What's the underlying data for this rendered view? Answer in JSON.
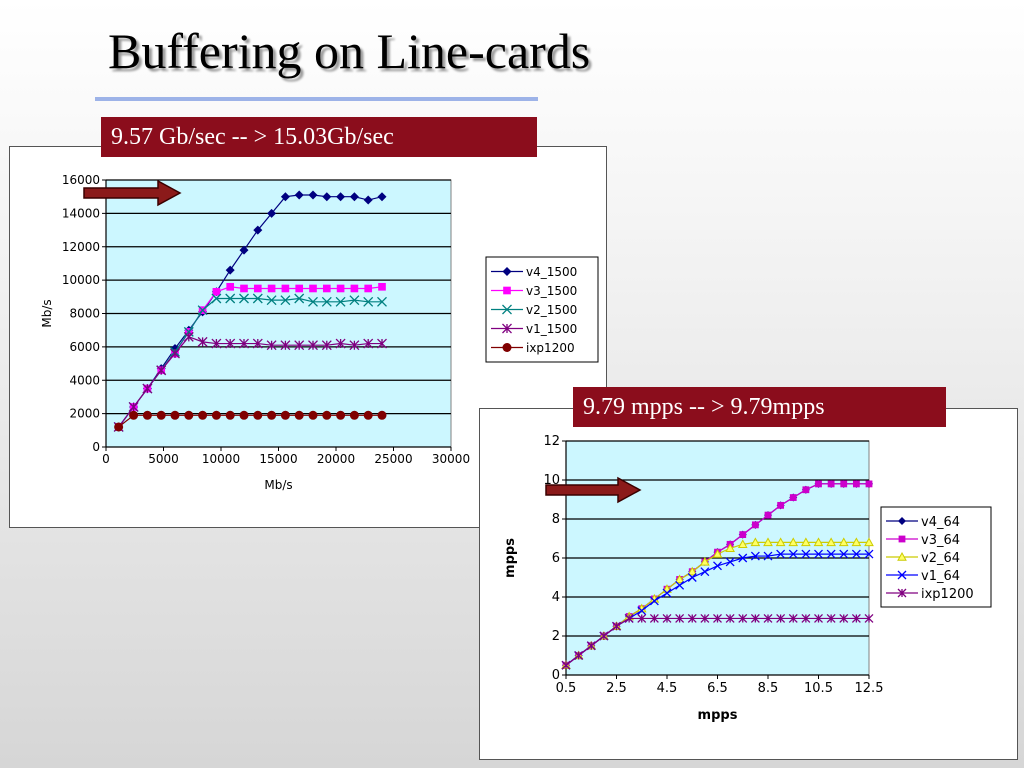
{
  "slide": {
    "title": "Buffering on Line-cards",
    "callout_1": "9.57 Gb/sec -- > 15.03Gb/sec",
    "callout_2": "9.79 mpps -- > 9.79mpps"
  },
  "colors": {
    "plot_bg": "#ccf7ff",
    "callout_bg": "#8b0d1c",
    "title_rule": "#9db3e8",
    "arrow": "#8b1a1a"
  },
  "chart_data": [
    {
      "type": "line",
      "xlabel": "Mb/s",
      "ylabel": "Mb/s",
      "xlim": [
        0,
        30000
      ],
      "ylim": [
        0,
        16000
      ],
      "x_ticks": [
        "0",
        "5000",
        "10000",
        "15000",
        "20000",
        "25000",
        "30000"
      ],
      "y_ticks": [
        "0",
        "2000",
        "4000",
        "6000",
        "8000",
        "10000",
        "12000",
        "14000",
        "16000"
      ],
      "grid": "horizontal",
      "legend": "right",
      "series": [
        {
          "name": "v4_1500",
          "marker": "diamond",
          "color": "#000080",
          "x": [
            1100,
            2400,
            3600,
            4800,
            6000,
            7200,
            8400,
            9600,
            10800,
            12000,
            13200,
            14400,
            15600,
            16800,
            18000,
            19200,
            20400,
            21600,
            22800,
            24000
          ],
          "y": [
            1200,
            2400,
            3500,
            4700,
            5900,
            7000,
            8100,
            9300,
            10600,
            11800,
            13000,
            14000,
            15000,
            15100,
            15100,
            15000,
            15000,
            15000,
            14800,
            15000
          ]
        },
        {
          "name": "v3_1500",
          "marker": "square",
          "color": "#ff00ff",
          "x": [
            1100,
            2400,
            3600,
            4800,
            6000,
            7200,
            8400,
            9600,
            10800,
            12000,
            13200,
            14400,
            15600,
            16800,
            18000,
            19200,
            20400,
            21600,
            22800,
            24000
          ],
          "y": [
            1200,
            2400,
            3500,
            4600,
            5600,
            6900,
            8200,
            9300,
            9600,
            9500,
            9500,
            9500,
            9500,
            9500,
            9500,
            9500,
            9500,
            9500,
            9500,
            9600
          ]
        },
        {
          "name": "v2_1500",
          "marker": "x",
          "color": "#008080",
          "x": [
            1100,
            2400,
            3600,
            4800,
            6000,
            7200,
            8400,
            9600,
            10800,
            12000,
            13200,
            14400,
            15600,
            16800,
            18000,
            19200,
            20400,
            21600,
            22800,
            24000
          ],
          "y": [
            1200,
            2400,
            3500,
            4600,
            5700,
            6900,
            8200,
            8900,
            8900,
            8900,
            8900,
            8800,
            8800,
            8900,
            8700,
            8700,
            8700,
            8800,
            8700,
            8700
          ]
        },
        {
          "name": "v1_1500",
          "marker": "asterisk",
          "color": "#800080",
          "x": [
            1100,
            2400,
            3600,
            4800,
            6000,
            7200,
            8400,
            9600,
            10800,
            12000,
            13200,
            14400,
            15600,
            16800,
            18000,
            19200,
            20400,
            21600,
            22800,
            24000
          ],
          "y": [
            1200,
            2400,
            3500,
            4600,
            5600,
            6600,
            6300,
            6200,
            6200,
            6200,
            6200,
            6100,
            6100,
            6100,
            6100,
            6100,
            6200,
            6100,
            6200,
            6200
          ]
        },
        {
          "name": "ixp1200",
          "marker": "circle",
          "color": "#800000",
          "x": [
            1100,
            2400,
            3600,
            4800,
            6000,
            7200,
            8400,
            9600,
            10800,
            12000,
            13200,
            14400,
            15600,
            16800,
            18000,
            19200,
            20400,
            21600,
            22800,
            24000
          ],
          "y": [
            1200,
            1900,
            1900,
            1900,
            1900,
            1900,
            1900,
            1900,
            1900,
            1900,
            1900,
            1900,
            1900,
            1900,
            1900,
            1900,
            1900,
            1900,
            1900,
            1900
          ]
        }
      ]
    },
    {
      "type": "line",
      "xlabel": "mpps",
      "ylabel": "mpps",
      "xlim": [
        0.5,
        12.5
      ],
      "ylim": [
        0,
        12
      ],
      "x_ticks": [
        "0.5",
        "2.5",
        "4.5",
        "6.5",
        "8.5",
        "10.5",
        "12.5"
      ],
      "y_ticks": [
        "0",
        "2",
        "4",
        "6",
        "8",
        "10",
        "12"
      ],
      "grid": "horizontal",
      "legend": "right",
      "series": [
        {
          "name": "v4_64",
          "marker": "diamond",
          "color": "#000080",
          "x": [
            0.5,
            1.0,
            1.5,
            2.0,
            2.5,
            3.0,
            3.5,
            4.0,
            4.5,
            5.0,
            5.5,
            6.0,
            6.5,
            7.0,
            7.5,
            8.0,
            8.5,
            9.0,
            9.5,
            10.0,
            10.5,
            11.0,
            11.5,
            12.0,
            12.5
          ],
          "y": [
            0.5,
            1.0,
            1.5,
            2.0,
            2.5,
            3.0,
            3.4,
            3.9,
            4.4,
            4.9,
            5.3,
            5.8,
            6.3,
            6.7,
            7.2,
            7.7,
            8.2,
            8.7,
            9.1,
            9.5,
            9.8,
            9.8,
            9.8,
            9.8,
            9.8
          ]
        },
        {
          "name": "v3_64",
          "marker": "square",
          "color": "#cc00cc",
          "x": [
            0.5,
            1.0,
            1.5,
            2.0,
            2.5,
            3.0,
            3.5,
            4.0,
            4.5,
            5.0,
            5.5,
            6.0,
            6.5,
            7.0,
            7.5,
            8.0,
            8.5,
            9.0,
            9.5,
            10.0,
            10.5,
            11.0,
            11.5,
            12.0,
            12.5
          ],
          "y": [
            0.5,
            1.0,
            1.5,
            2.0,
            2.5,
            3.0,
            3.4,
            3.9,
            4.4,
            4.9,
            5.3,
            5.8,
            6.3,
            6.7,
            7.2,
            7.7,
            8.2,
            8.7,
            9.1,
            9.5,
            9.8,
            9.8,
            9.8,
            9.8,
            9.8
          ]
        },
        {
          "name": "v2_64",
          "marker": "triangle",
          "color": "#cccc00",
          "x": [
            0.5,
            1.0,
            1.5,
            2.0,
            2.5,
            3.0,
            3.5,
            4.0,
            4.5,
            5.0,
            5.5,
            6.0,
            6.5,
            7.0,
            7.5,
            8.0,
            8.5,
            9.0,
            9.5,
            10.0,
            10.5,
            11.0,
            11.5,
            12.0,
            12.5
          ],
          "y": [
            0.5,
            1.0,
            1.5,
            2.0,
            2.5,
            3.0,
            3.4,
            3.9,
            4.4,
            4.9,
            5.3,
            5.8,
            6.2,
            6.5,
            6.7,
            6.8,
            6.8,
            6.8,
            6.8,
            6.8,
            6.8,
            6.8,
            6.8,
            6.8,
            6.8
          ]
        },
        {
          "name": "v1_64",
          "marker": "x",
          "color": "#0000ff",
          "x": [
            0.5,
            1.0,
            1.5,
            2.0,
            2.5,
            3.0,
            3.5,
            4.0,
            4.5,
            5.0,
            5.5,
            6.0,
            6.5,
            7.0,
            7.5,
            8.0,
            8.5,
            9.0,
            9.5,
            10.0,
            10.5,
            11.0,
            11.5,
            12.0,
            12.5
          ],
          "y": [
            0.5,
            1.0,
            1.5,
            2.0,
            2.5,
            2.9,
            3.3,
            3.8,
            4.2,
            4.6,
            5.0,
            5.3,
            5.6,
            5.8,
            6.0,
            6.1,
            6.1,
            6.2,
            6.2,
            6.2,
            6.2,
            6.2,
            6.2,
            6.2,
            6.2
          ]
        },
        {
          "name": "ixp1200",
          "marker": "asterisk",
          "color": "#800080",
          "x": [
            0.5,
            1.0,
            1.5,
            2.0,
            2.5,
            3.0,
            3.5,
            4.0,
            4.5,
            5.0,
            5.5,
            6.0,
            6.5,
            7.0,
            7.5,
            8.0,
            8.5,
            9.0,
            9.5,
            10.0,
            10.5,
            11.0,
            11.5,
            12.0,
            12.5
          ],
          "y": [
            0.5,
            1.0,
            1.5,
            2.0,
            2.5,
            2.9,
            2.9,
            2.9,
            2.9,
            2.9,
            2.9,
            2.9,
            2.9,
            2.9,
            2.9,
            2.9,
            2.9,
            2.9,
            2.9,
            2.9,
            2.9,
            2.9,
            2.9,
            2.9,
            2.9
          ]
        }
      ]
    }
  ]
}
